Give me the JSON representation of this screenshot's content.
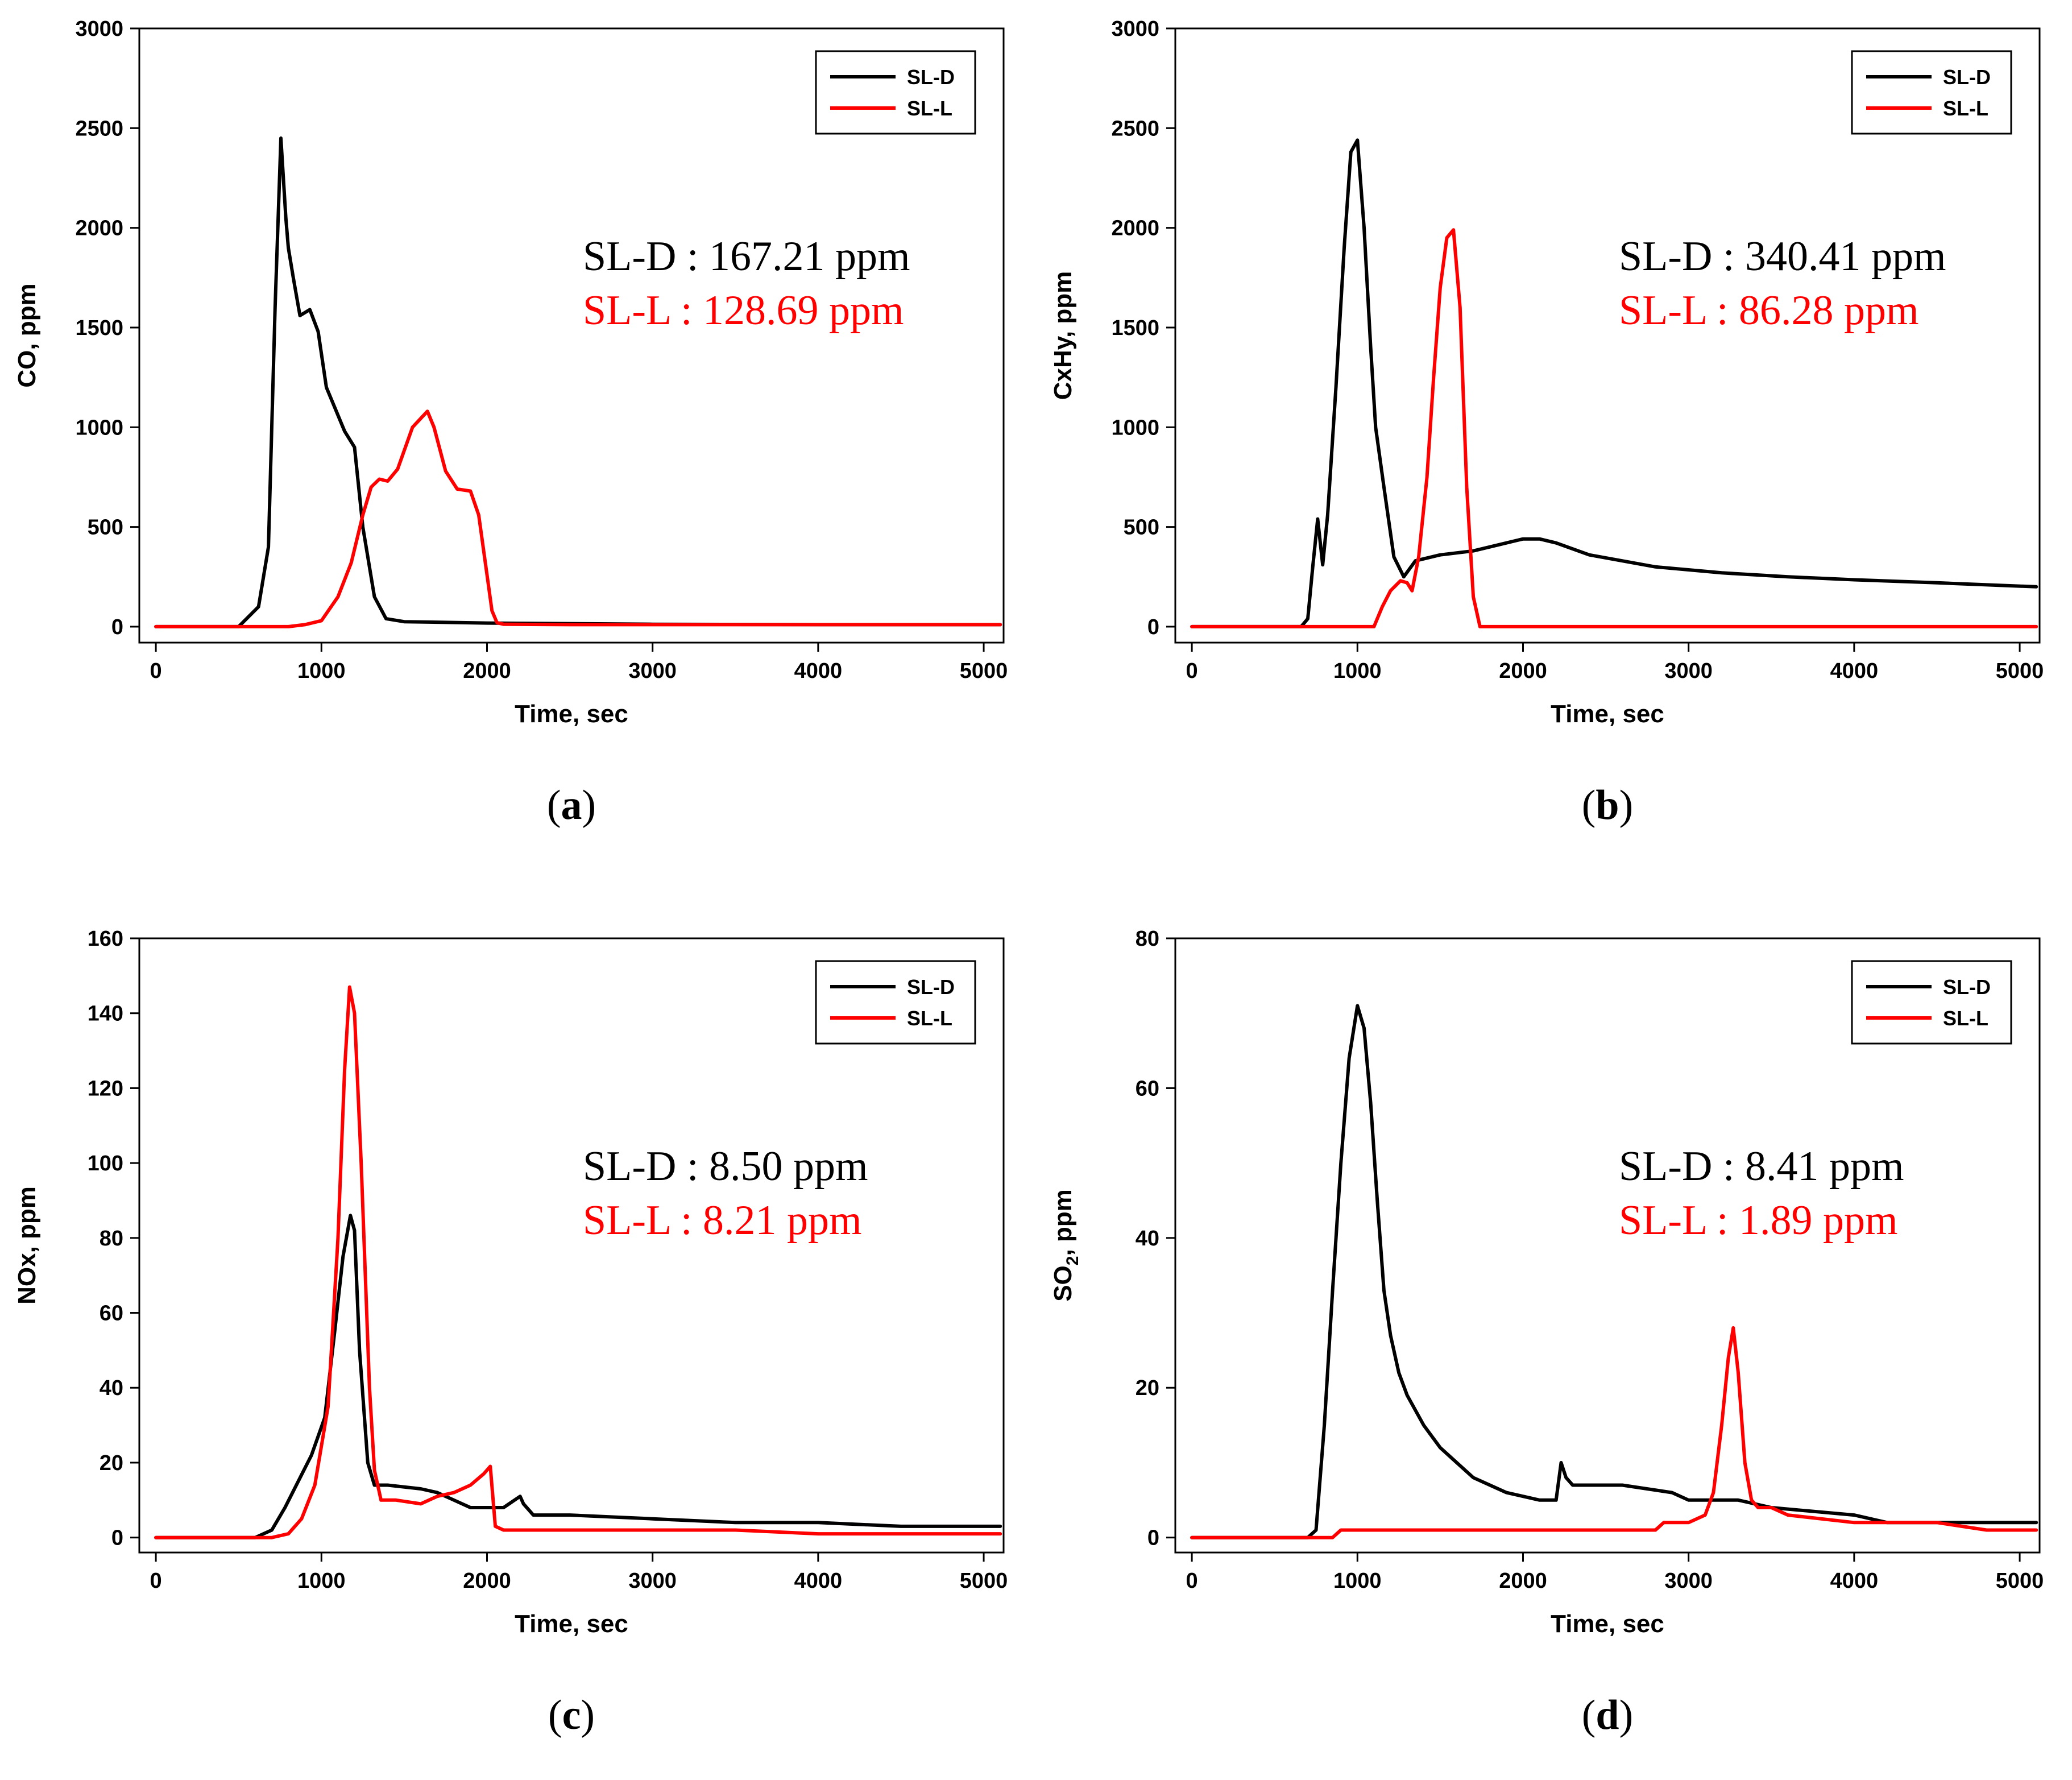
{
  "colors": {
    "sl_d": "#000000",
    "sl_l": "#ff0000"
  },
  "chart_data": [
    {
      "type": "line",
      "panel": "a",
      "caption": "a",
      "ylabel": "CO, ppm",
      "xlabel": "Time, sec",
      "xlim": [
        -100,
        5120
      ],
      "ylim": [
        -80,
        3000
      ],
      "xticks": [
        0,
        1000,
        2000,
        3000,
        4000,
        5000
      ],
      "yticks": [
        0,
        500,
        1000,
        1500,
        2000,
        2500,
        3000
      ],
      "legend": [
        "SL-D",
        "SL-L"
      ],
      "annotations": [
        {
          "series": "SL-D",
          "text": "SL-D : 167.21 ppm"
        },
        {
          "series": "SL-L",
          "text": "SL-L : 128.69 ppm"
        }
      ],
      "series": [
        {
          "name": "SL-D",
          "x": [
            0,
            500,
            620,
            680,
            720,
            755,
            785,
            800,
            830,
            870,
            930,
            980,
            1030,
            1090,
            1140,
            1200,
            1250,
            1320,
            1390,
            1500,
            2000,
            3000,
            4000,
            5100
          ],
          "y": [
            0,
            0,
            100,
            400,
            1600,
            2450,
            2050,
            1900,
            1750,
            1560,
            1590,
            1480,
            1200,
            1080,
            980,
            900,
            500,
            150,
            40,
            25,
            18,
            12,
            10,
            10
          ]
        },
        {
          "name": "SL-L",
          "x": [
            0,
            800,
            900,
            1000,
            1100,
            1180,
            1250,
            1300,
            1350,
            1400,
            1460,
            1550,
            1640,
            1680,
            1750,
            1820,
            1900,
            1950,
            2000,
            2030,
            2060,
            2100,
            2500,
            3000,
            4000,
            5100
          ],
          "y": [
            0,
            0,
            10,
            30,
            150,
            320,
            560,
            700,
            740,
            730,
            790,
            1000,
            1080,
            1000,
            780,
            690,
            680,
            560,
            260,
            80,
            20,
            12,
            10,
            10,
            10,
            10
          ]
        }
      ]
    },
    {
      "type": "line",
      "panel": "b",
      "caption": "b",
      "ylabel": "CxHy, ppm",
      "xlabel": "Time, sec",
      "xlim": [
        -100,
        5120
      ],
      "ylim": [
        -80,
        3000
      ],
      "xticks": [
        0,
        1000,
        2000,
        3000,
        4000,
        5000
      ],
      "yticks": [
        0,
        500,
        1000,
        1500,
        2000,
        2500,
        3000
      ],
      "legend": [
        "SL-D",
        "SL-L"
      ],
      "annotations": [
        {
          "series": "SL-D",
          "text": "SL-D : 340.41 ppm"
        },
        {
          "series": "SL-L",
          "text": "SL-L : 86.28 ppm"
        }
      ],
      "series": [
        {
          "name": "SL-D",
          "x": [
            0,
            660,
            700,
            730,
            760,
            790,
            820,
            870,
            920,
            960,
            1000,
            1040,
            1080,
            1110,
            1160,
            1220,
            1280,
            1350,
            1500,
            1700,
            1850,
            2000,
            2100,
            2200,
            2400,
            2800,
            3200,
            3600,
            4000,
            4500,
            5100
          ],
          "y": [
            0,
            0,
            40,
            300,
            540,
            310,
            560,
            1200,
            1900,
            2380,
            2440,
            2000,
            1400,
            1000,
            700,
            350,
            250,
            330,
            360,
            380,
            410,
            440,
            440,
            420,
            360,
            300,
            270,
            250,
            235,
            220,
            200
          ]
        },
        {
          "name": "SL-L",
          "x": [
            0,
            1100,
            1150,
            1200,
            1260,
            1300,
            1330,
            1370,
            1420,
            1460,
            1500,
            1540,
            1580,
            1620,
            1660,
            1700,
            1740,
            2000,
            3000,
            5100
          ],
          "y": [
            0,
            0,
            100,
            180,
            230,
            220,
            180,
            350,
            750,
            1250,
            1700,
            1950,
            1990,
            1600,
            700,
            150,
            0,
            0,
            0,
            0
          ]
        }
      ]
    },
    {
      "type": "line",
      "panel": "c",
      "caption": "c",
      "ylabel": "NOx, ppm",
      "xlabel": "Time, sec",
      "xlim": [
        -100,
        5120
      ],
      "ylim": [
        -4,
        160
      ],
      "xticks": [
        0,
        1000,
        2000,
        3000,
        4000,
        5000
      ],
      "yticks": [
        0,
        20,
        40,
        60,
        80,
        100,
        120,
        140,
        160
      ],
      "legend": [
        "SL-D",
        "SL-L"
      ],
      "annotations": [
        {
          "series": "SL-D",
          "text": "SL-D : 8.50 ppm"
        },
        {
          "series": "SL-L",
          "text": "SL-L : 8.21 ppm"
        }
      ],
      "series": [
        {
          "name": "SL-D",
          "x": [
            0,
            600,
            700,
            780,
            860,
            940,
            1020,
            1080,
            1130,
            1175,
            1200,
            1230,
            1280,
            1320,
            1400,
            1600,
            1700,
            1800,
            1900,
            2100,
            2200,
            2220,
            2280,
            2500,
            3000,
            3500,
            4000,
            4500,
            5100
          ],
          "y": [
            0,
            0,
            2,
            8,
            15,
            22,
            32,
            55,
            75,
            86,
            82,
            50,
            20,
            14,
            14,
            13,
            12,
            10,
            8,
            8,
            11,
            9,
            6,
            6,
            5,
            4,
            4,
            3,
            3
          ]
        },
        {
          "name": "SL-L",
          "x": [
            0,
            700,
            800,
            880,
            960,
            1040,
            1100,
            1140,
            1170,
            1200,
            1240,
            1290,
            1320,
            1360,
            1450,
            1600,
            1700,
            1800,
            1900,
            1980,
            2020,
            2050,
            2100,
            2500,
            3000,
            3500,
            4000,
            4500,
            5100
          ],
          "y": [
            0,
            0,
            1,
            5,
            14,
            35,
            80,
            125,
            147,
            140,
            100,
            40,
            18,
            10,
            10,
            9,
            11,
            12,
            14,
            17,
            19,
            3,
            2,
            2,
            2,
            2,
            1,
            1,
            1
          ]
        }
      ]
    },
    {
      "type": "line",
      "panel": "d",
      "caption": "d",
      "ylabel": "SO2, ppm",
      "ylabel_main": "SO",
      "ylabel_sub": "2",
      "ylabel_suffix": ", ppm",
      "xlabel": "Time, sec",
      "xlim": [
        -100,
        5120
      ],
      "ylim": [
        -2,
        80
      ],
      "xticks": [
        0,
        1000,
        2000,
        3000,
        4000,
        5000
      ],
      "yticks": [
        0,
        20,
        40,
        60,
        80
      ],
      "legend": [
        "SL-D",
        "SL-L"
      ],
      "annotations": [
        {
          "series": "SL-D",
          "text": "SL-D : 8.41 ppm"
        },
        {
          "series": "SL-L",
          "text": "SL-L : 1.89 ppm"
        }
      ],
      "series": [
        {
          "name": "SL-D",
          "x": [
            0,
            560,
            700,
            750,
            800,
            850,
            900,
            950,
            1000,
            1040,
            1080,
            1120,
            1160,
            1200,
            1250,
            1300,
            1400,
            1500,
            1600,
            1700,
            1800,
            1900,
            2000,
            2100,
            2200,
            2230,
            2260,
            2300,
            2600,
            2900,
            3000,
            3300,
            3500,
            4000,
            4200,
            4600,
            5100
          ],
          "y": [
            0,
            0,
            0,
            1,
            15,
            33,
            50,
            64,
            71,
            68,
            58,
            45,
            33,
            27,
            22,
            19,
            15,
            12,
            10,
            8,
            7,
            6,
            5.5,
            5,
            5,
            10,
            8,
            7,
            7,
            6,
            5,
            5,
            4,
            3,
            2,
            2,
            2
          ]
        },
        {
          "name": "SL-L",
          "x": [
            0,
            850,
            900,
            1100,
            2000,
            2800,
            2850,
            3000,
            3100,
            3150,
            3200,
            3240,
            3270,
            3300,
            3340,
            3380,
            3420,
            3500,
            3600,
            4000,
            4500,
            4800,
            5100
          ],
          "y": [
            0,
            0,
            1,
            1,
            1,
            1,
            2,
            2,
            3,
            6,
            15,
            24,
            28,
            22,
            10,
            5,
            4,
            4,
            3,
            2,
            2,
            1,
            1
          ]
        }
      ]
    }
  ]
}
